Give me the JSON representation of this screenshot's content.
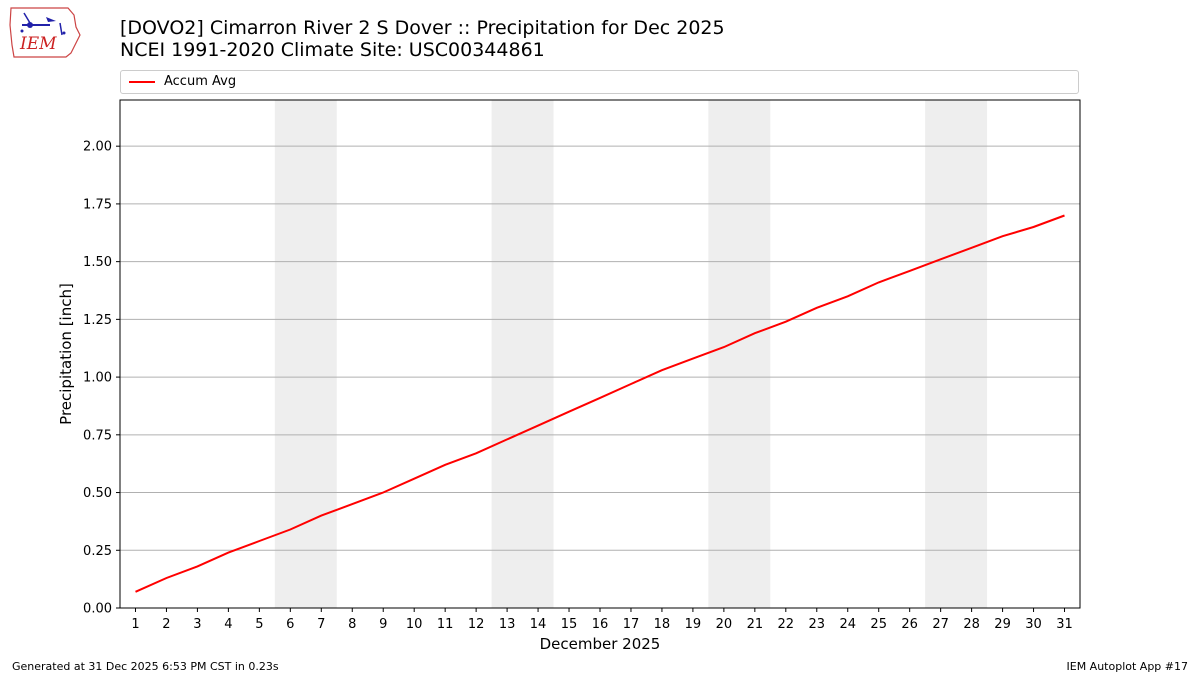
{
  "header": {
    "title_line1": "[DOVO2] Cimarron River 2 S Dover :: Precipitation for Dec 2025",
    "title_line2": "NCEI 1991-2020 Climate Site: USC00344861"
  },
  "logo": {
    "text": "IEM",
    "icon": "iem-state-logo"
  },
  "footer": {
    "left": "Generated at 31 Dec 2025 6:53 PM CST in 0.23s",
    "right": "IEM Autoplot App #17"
  },
  "colors": {
    "series": "#ff0000",
    "weekend": "#eeeeee",
    "grid": "#b0b0b0"
  },
  "chart_data": {
    "type": "line",
    "title": "[DOVO2] Cimarron River 2 S Dover :: Precipitation for Dec 2025",
    "subtitle": "NCEI 1991-2020 Climate Site: USC00344861",
    "xlabel": "December 2025",
    "ylabel": "Precipitation [inch]",
    "x": [
      1,
      2,
      3,
      4,
      5,
      6,
      7,
      8,
      9,
      10,
      11,
      12,
      13,
      14,
      15,
      16,
      17,
      18,
      19,
      20,
      21,
      22,
      23,
      24,
      25,
      26,
      27,
      28,
      29,
      30,
      31
    ],
    "xlim": [
      0.5,
      31.5
    ],
    "ylim": [
      0,
      2.2
    ],
    "yticks": [
      0.0,
      0.25,
      0.5,
      0.75,
      1.0,
      1.25,
      1.5,
      1.75,
      2.0
    ],
    "ytick_labels": [
      "0.00",
      "0.25",
      "0.50",
      "0.75",
      "1.00",
      "1.25",
      "1.50",
      "1.75",
      "2.00"
    ],
    "xtick_labels": [
      "1",
      "2",
      "3",
      "4",
      "5",
      "6",
      "7",
      "8",
      "9",
      "10",
      "11",
      "12",
      "13",
      "14",
      "15",
      "16",
      "17",
      "18",
      "19",
      "20",
      "21",
      "22",
      "23",
      "24",
      "25",
      "26",
      "27",
      "28",
      "29",
      "30",
      "31"
    ],
    "weekend_spans": [
      [
        5.5,
        7.5
      ],
      [
        12.5,
        14.5
      ],
      [
        19.5,
        21.5
      ],
      [
        26.5,
        28.5
      ]
    ],
    "grid": "horizontal",
    "legend": {
      "placement": "top",
      "entries": [
        "Accum Avg"
      ]
    },
    "series": [
      {
        "name": "Accum Avg",
        "values": [
          0.07,
          0.13,
          0.18,
          0.24,
          0.29,
          0.34,
          0.4,
          0.45,
          0.5,
          0.56,
          0.62,
          0.67,
          0.73,
          0.79,
          0.85,
          0.91,
          0.97,
          1.03,
          1.08,
          1.13,
          1.19,
          1.24,
          1.3,
          1.35,
          1.41,
          1.46,
          1.51,
          1.56,
          1.61,
          1.65,
          1.7
        ]
      }
    ]
  }
}
